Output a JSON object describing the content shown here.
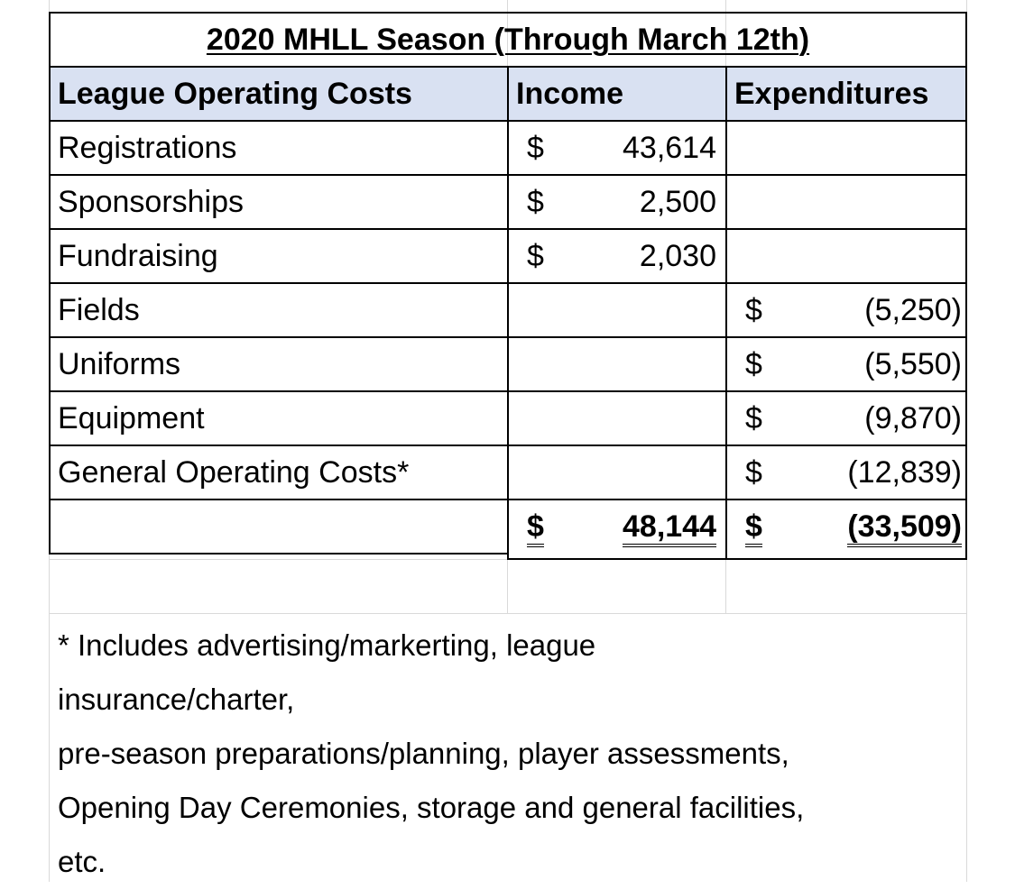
{
  "title": "2020 MHLL Season (Through March 12th)",
  "headers": {
    "label": "League Operating Costs",
    "income": "Income",
    "expenditures": "Expenditures"
  },
  "rows": [
    {
      "label": "Registrations",
      "income_cur": "$",
      "income": "43,614",
      "exp_cur": "",
      "exp": ""
    },
    {
      "label": "Sponsorships",
      "income_cur": "$",
      "income": "2,500",
      "exp_cur": "",
      "exp": ""
    },
    {
      "label": "Fundraising",
      "income_cur": "$",
      "income": "2,030",
      "exp_cur": "",
      "exp": ""
    },
    {
      "label": "Fields",
      "income_cur": "",
      "income": "",
      "exp_cur": "$",
      "exp": "(5,250)"
    },
    {
      "label": "Uniforms",
      "income_cur": "",
      "income": "",
      "exp_cur": "$",
      "exp": "(5,550)"
    },
    {
      "label": "Equipment",
      "income_cur": "",
      "income": "",
      "exp_cur": "$",
      "exp": "(9,870)"
    },
    {
      "label": "General Operating Costs*",
      "income_cur": "",
      "income": "",
      "exp_cur": "$",
      "exp": "(12,839)"
    }
  ],
  "totals": {
    "income_cur": "$",
    "income": "48,144",
    "exp_cur": "$",
    "exp": "(33,509)"
  },
  "footnote": [
    "* Includes advertising/markerting, league",
    "insurance/charter,",
    "pre-season preparations/planning, player assessments,",
    "Opening Day Ceremonies, storage and general facilities,",
    "etc."
  ]
}
